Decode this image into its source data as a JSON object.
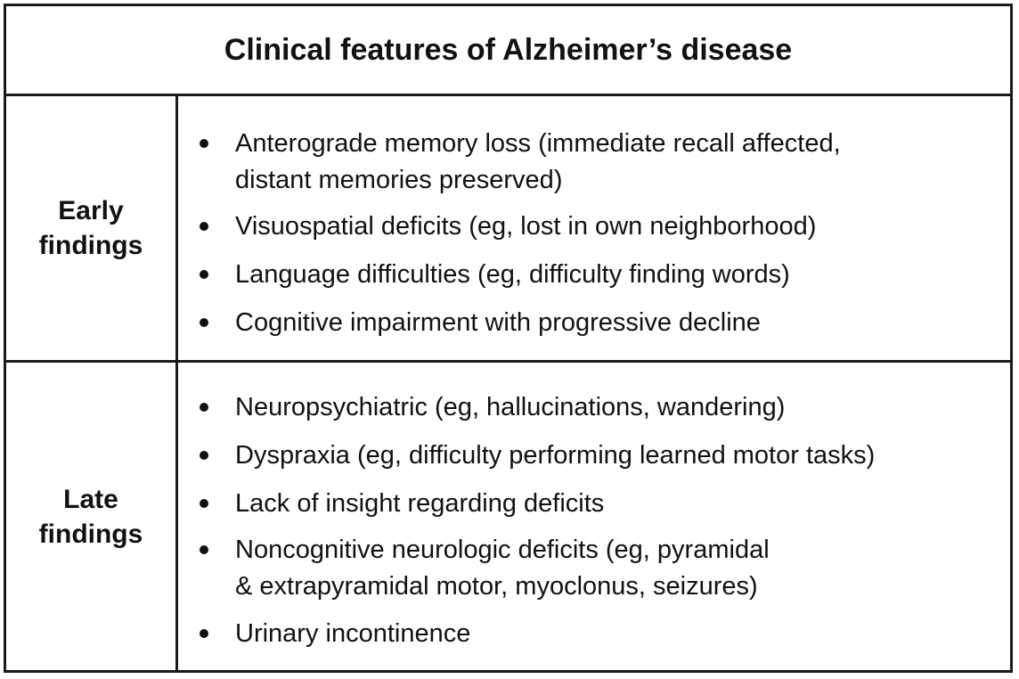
{
  "title": "Clinical features of Alzheimer’s disease",
  "sections": [
    {
      "label": "Early findings",
      "items": [
        "Anterograde memory loss (immediate recall affected,\ndistant memories preserved)",
        "Visuospatial deficits (eg, lost in own neighborhood)",
        "Language difficulties (eg, difficulty finding words)",
        "Cognitive impairment with progressive decline"
      ]
    },
    {
      "label": "Late findings",
      "items": [
        "Neuropsychiatric (eg, hallucinations, wandering)",
        "Dyspraxia (eg, difficulty performing learned motor tasks)",
        "Lack of insight regarding deficits",
        "Noncognitive neurologic deficits (eg, pyramidal\n& extrapyramidal motor, myoclonus, seizures)",
        "Urinary incontinence"
      ]
    }
  ]
}
